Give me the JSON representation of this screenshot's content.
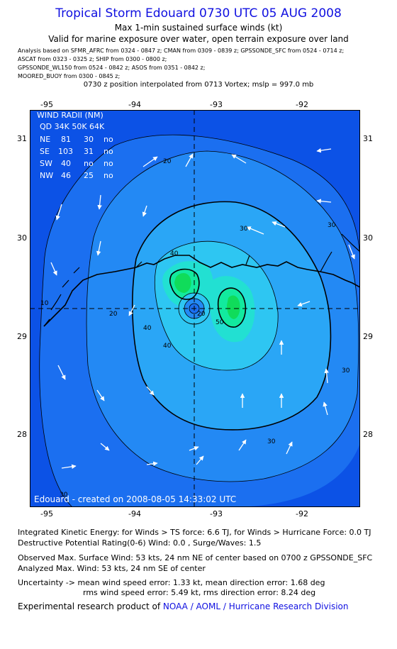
{
  "header": {
    "title": "Tropical Storm Edouard 0730 UTC 05 AUG 2008",
    "subtitle1": "Max 1-min sustained surface winds (kt)",
    "subtitle2": "Valid for marine exposure over water, open terrain exposure over land",
    "analysis_lines": [
      "Analysis based on   SFMR_AFRC from 0324 - 0847 z;  CMAN from 0309 - 0839 z;  GPSSONDE_SFC from 0524 - 0714 z;",
      "ASCAT from 0323 - 0325 z;  SHIP from 0300 - 0800 z;",
      "GPSSONDE_WL150 from 0524 - 0842 z;  ASOS from 0351 - 0842 z;",
      "MOORED_BUOY from 0300 - 0845 z;"
    ],
    "position_note": "0730 z position interpolated from 0713 Vortex; mslp = 997.0 mb"
  },
  "map": {
    "lon_labels": [
      "-95",
      "-94",
      "-93",
      "-92"
    ],
    "lat_labels": [
      "31",
      "30",
      "29",
      "28"
    ],
    "lon_range": [
      -95.2,
      -91.3
    ],
    "lat_range": [
      27.3,
      31.3
    ],
    "center": {
      "lon": -93.3,
      "lat": 29.28
    },
    "wind_radii": {
      "title": "WIND RADII (NM)",
      "header": "QD  34K  50K  64K",
      "rows": [
        {
          "q": "NE",
          "r34": "81",
          "r50": "30",
          "r64": "no"
        },
        {
          "q": "SE",
          "r34": "103",
          "r50": "31",
          "r64": "no"
        },
        {
          "q": "SW",
          "r34": "40",
          "r50": "no",
          "r64": "no"
        },
        {
          "q": "NW",
          "r34": "46",
          "r50": "25",
          "r64": "no"
        }
      ]
    },
    "contour_labels": [
      "10",
      "20",
      "20",
      "30",
      "30",
      "30",
      "30",
      "40",
      "40",
      "40",
      "50",
      "20",
      "30"
    ],
    "created_text": "Edouard - created on 2008-08-05 14:33:02 UTC",
    "colors": {
      "c10": "#1b6ff0",
      "c20": "#2389f4",
      "c30": "#2aa6f6",
      "c40": "#2ec6f2",
      "c45": "#22e0d2",
      "c50": "#12ea9e",
      "c55": "#10dc5a",
      "ocean": "#0c52e6"
    }
  },
  "info": {
    "ike": "Integrated Kinetic Energy:  for Winds > TS force: 6.6 TJ,  for Winds > Hurricane Force: 0.0 TJ",
    "dpr": "Destructive Potential Rating(0-6)   Wind: 0.0 , Surge/Waves: 1.5",
    "observed": "Observed Max. Surface Wind: 53 kts, 24 nm NE of center based on 0700 z GPSSONDE_SFC",
    "analyzed": "Analyzed Max. Wind: 53 kts, 24 nm SE of center",
    "uncertainty1": "Uncertainty -> mean wind speed error: 1.33 kt,   mean direction error: 1.68 deg",
    "uncertainty2": "rms wind speed error: 5.49 kt,   rms direction error: 8.24 deg"
  },
  "footer": {
    "prefix": "Experimental research product of ",
    "org": "NOAA / AOML / Hurricane Research Division"
  }
}
